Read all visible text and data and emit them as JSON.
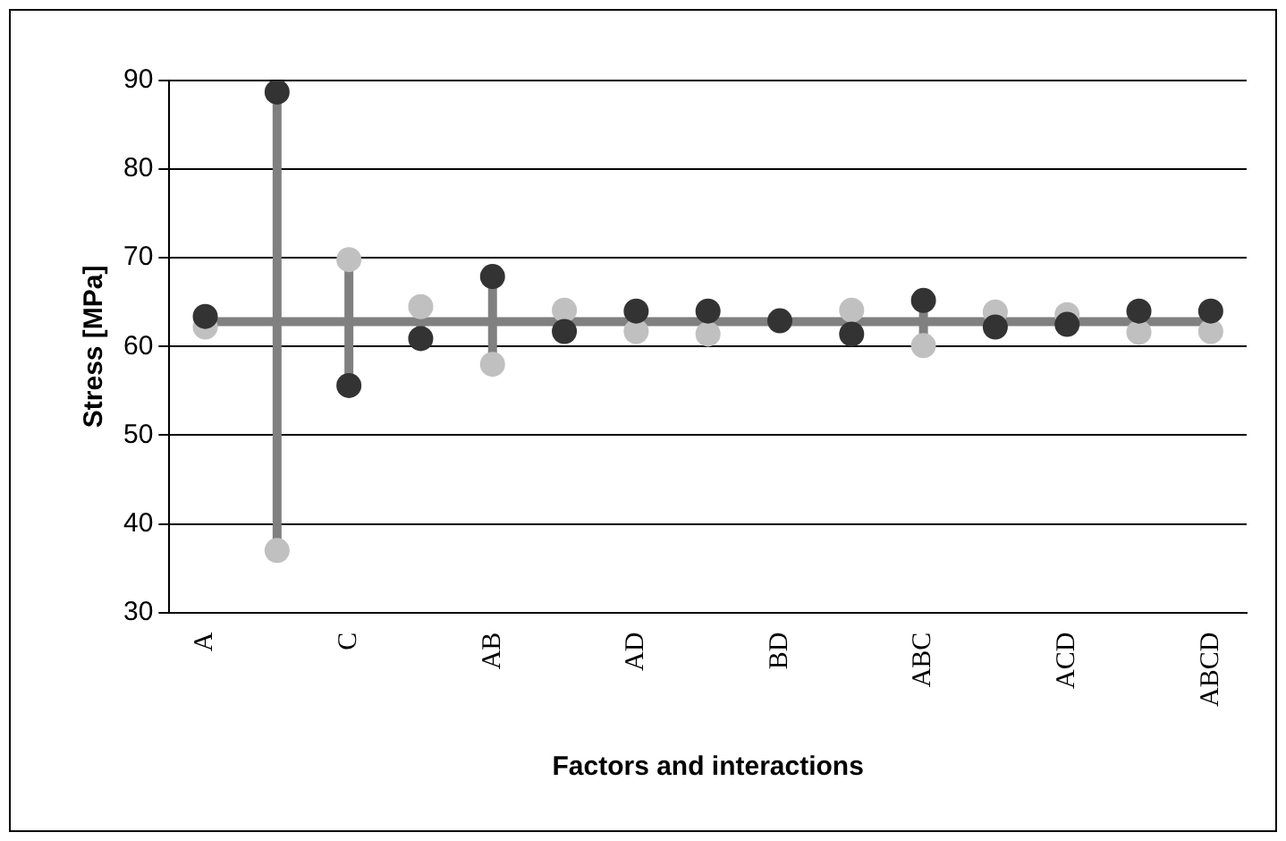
{
  "chart_data": {
    "type": "scatter",
    "xlabel": "Factors and interactions",
    "ylabel": "Stress [MPa]",
    "categories": [
      "A",
      null,
      "C",
      null,
      "AB",
      null,
      "AD",
      null,
      "BD",
      null,
      "ABC",
      null,
      "ACD",
      null,
      "ABCD"
    ],
    "series": [
      {
        "color": "#333333",
        "values": [
          63.4,
          88.7,
          55.6,
          60.9,
          67.9,
          61.7,
          64.0,
          64.0,
          62.9,
          61.4,
          65.2,
          62.2,
          62.5,
          64.0,
          64.0
        ]
      },
      {
        "color": "#c0c0c0",
        "values": [
          62.2,
          37.0,
          69.8,
          64.5,
          58.0,
          64.1,
          61.7,
          61.4,
          null,
          64.1,
          60.1,
          63.9,
          63.6,
          61.6,
          61.7
        ]
      }
    ],
    "ylim": [
      30,
      90
    ],
    "yticks": [
      30,
      40,
      50,
      60,
      70,
      80,
      90
    ],
    "grid": "y",
    "legend": false,
    "marker": "circle",
    "ref_lines": [
      {
        "axis": "y",
        "value": 62.8,
        "color": "#808080"
      }
    ]
  }
}
